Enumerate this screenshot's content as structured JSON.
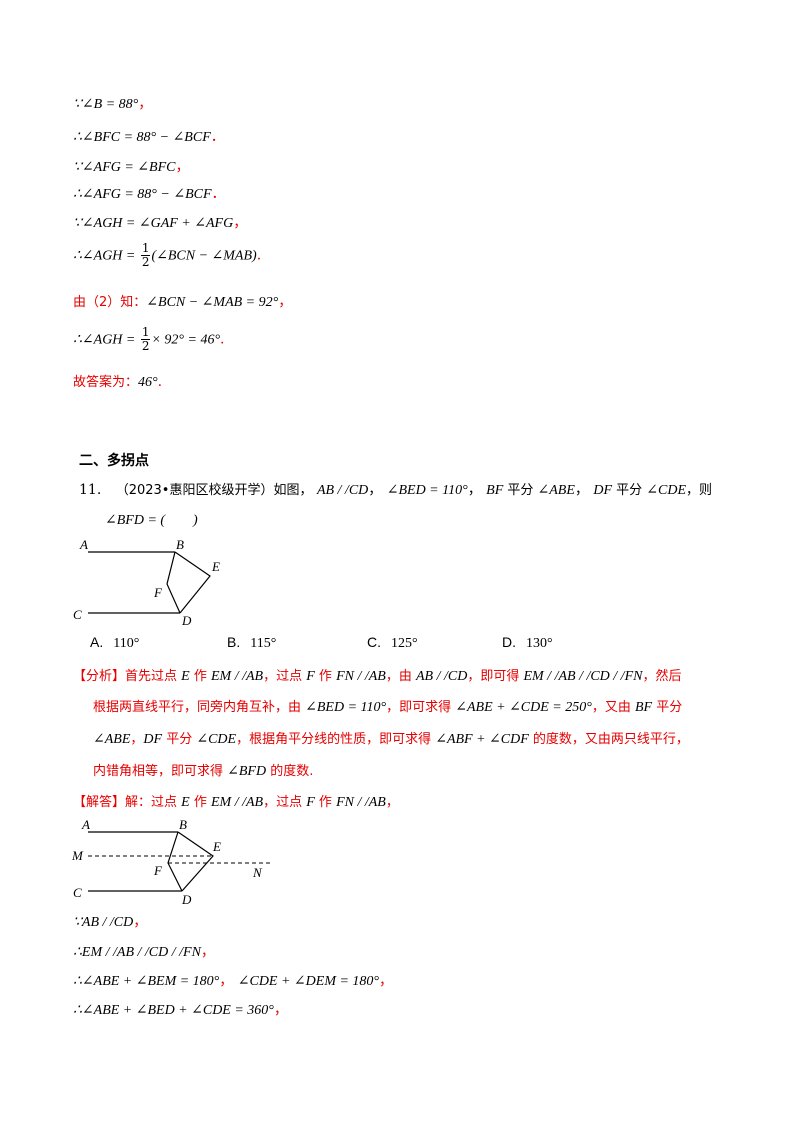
{
  "lines": {
    "l1": "∵∠B = 88°",
    "l2": "∴∠BFC = 88° − ∠BCF",
    "l3": "∵∠AFG = ∠BFC",
    "l4": "∴∠AFG = 88° − ∠BCF",
    "l5": "∵∠AGH = ∠GAF + ∠AFG",
    "l6a": "∴∠AGH =",
    "l6b": "(∠BCN − ∠MAB)",
    "l7a": "由（2）知：",
    "l7b": "∠BCN − ∠MAB = 92°",
    "l8a": "∴∠AGH =",
    "l8b": "× 92° = 46°",
    "l9a": "故答案为：",
    "l9b": "46°"
  },
  "frac": {
    "num": "1",
    "den": "2"
  },
  "punct": {
    "comma": "，",
    "period": "．",
    "period2": "."
  },
  "section": {
    "title": "二、多拐点"
  },
  "question": {
    "number": "11.",
    "source": "（2023•惠阳区校级开学）如图，",
    "parts": [
      "AB / /CD",
      "，",
      "∠BED = 110°",
      "，",
      "BF",
      " 平分 ",
      "∠ABE",
      "，",
      "DF",
      " 平分 ",
      "∠CDE",
      "，则"
    ],
    "ask": "∠BFD = (　　)"
  },
  "options": [
    {
      "label": "A.",
      "value": "110°"
    },
    {
      "label": "B.",
      "value": "115°"
    },
    {
      "label": "C.",
      "value": "125°"
    },
    {
      "label": "D.",
      "value": "130°"
    }
  ],
  "analysis": {
    "tag": "【分析】",
    "r1": [
      "首先过点 ",
      "E",
      " 作 ",
      "EM / /AB",
      "，过点 ",
      "F",
      " 作 ",
      "FN / /AB",
      "，由 ",
      "AB / /CD",
      "，即可得 ",
      "EM / /AB / /CD / /FN",
      "，然后"
    ],
    "r2": [
      "根据两直线平行，同旁内角互补，由 ",
      "∠BED = 110°",
      "，即可求得 ",
      "∠ABE + ∠CDE = 250°",
      "，又由 ",
      "BF",
      " 平分"
    ],
    "r3": [
      "∠ABE",
      "，",
      "DF",
      " 平分 ",
      "∠CDE",
      "，根据角平分线的性质，即可求得 ",
      "∠ABF + ∠CDF",
      " 的度数，又由两只线平行，"
    ],
    "r4": [
      "内错角相等，即可求得 ",
      "∠BFD",
      " 的度数."
    ]
  },
  "solution": {
    "tag": "【解答】",
    "head": [
      "解：过点 ",
      "E",
      " 作 ",
      "EM / /AB",
      "，过点 ",
      "F",
      " 作 ",
      "FN / /AB",
      "，"
    ],
    "s1": "∵AB / /CD",
    "s2": "∴EM / /AB / /CD / /FN",
    "s3a": "∴∠ABE + ∠BEM = 180°",
    "s3b": "∠CDE + ∠DEM = 180°",
    "s4": "∴∠ABE + ∠BED + ∠CDE = 360°"
  },
  "figure1": {
    "labels": [
      "A",
      "B",
      "E",
      "F",
      "C",
      "D"
    ]
  },
  "figure2": {
    "labels": [
      "A",
      "B",
      "E",
      "M",
      "F",
      "N",
      "C",
      "D"
    ]
  }
}
